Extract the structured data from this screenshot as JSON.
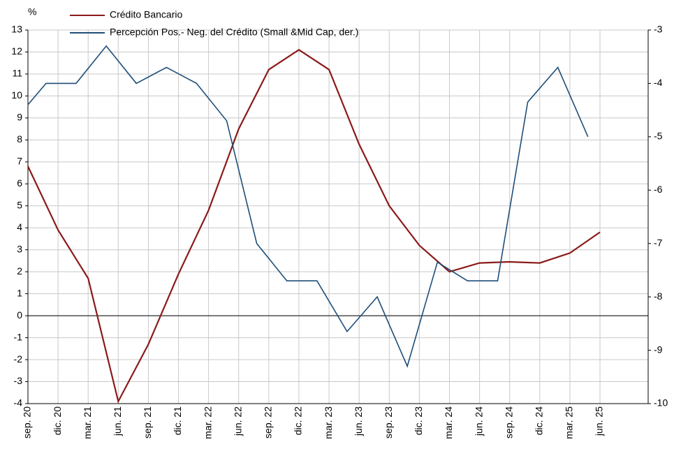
{
  "chart_data": {
    "type": "line",
    "y_label": "%",
    "categories": [
      "sep. 20",
      "dic. 20",
      "mar. 21",
      "jun. 21",
      "sep. 21",
      "dic. 21",
      "mar. 22",
      "jun. 22",
      "sep. 22",
      "dic. 22",
      "mar. 23",
      "jun. 23",
      "sep. 23",
      "dic. 23",
      "mar. 24",
      "jun. 24",
      "sep. 24",
      "dic. 24",
      "mar. 25",
      "jun. 25"
    ],
    "xlim": [
      0,
      20.6
    ],
    "ylim": [
      -4,
      13
    ],
    "yticks": [
      -4,
      -3,
      -2,
      -1,
      0,
      1,
      2,
      3,
      4,
      5,
      6,
      7,
      8,
      9,
      10,
      11,
      12,
      13
    ],
    "y2lim": [
      -10,
      -3
    ],
    "y2ticks": [
      -10,
      -9,
      -8,
      -7,
      -6,
      -5,
      -4,
      -3
    ],
    "grid": true,
    "legend": "top",
    "series": [
      {
        "name": "Crédito Bancario",
        "color": "#8b1a1a",
        "values": [
          6.8,
          3.9,
          1.7,
          -3.9,
          -1.3,
          1.9,
          4.8,
          8.5,
          11.2,
          12.1,
          11.2,
          7.8,
          5.0,
          3.2,
          2.0,
          2.4,
          2.45,
          2.4,
          2.85,
          3.8
        ]
      },
      {
        "name": "Percepción Pos.- Neg. del Crédito (Small &Mid Cap, der.)",
        "color": "#1f4e79",
        "axis": "y2",
        "x": [
          0,
          0.6,
          1.6,
          2.6,
          3.6,
          4.6,
          5.6,
          6.6,
          7.6,
          8.6,
          9.6,
          10.6,
          11.6,
          12.6,
          13.6,
          14.6,
          15.6,
          16.6,
          17.6,
          18.6
        ],
        "values": [
          -4.4,
          -4.0,
          -4.0,
          -3.3,
          -4.0,
          -3.7,
          -4.0,
          -4.7,
          -7.0,
          -7.7,
          -7.7,
          -8.65,
          -8.0,
          -9.3,
          -7.35,
          -7.7,
          -7.7,
          -4.35,
          -3.7,
          -5.0
        ]
      }
    ]
  }
}
